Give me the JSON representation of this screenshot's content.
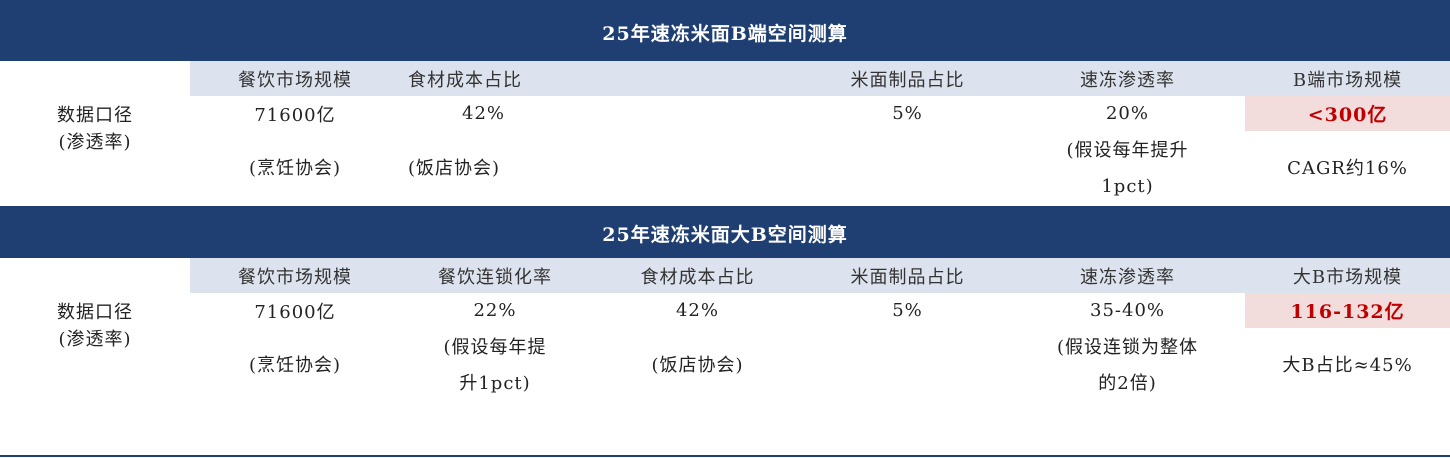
{
  "table1": {
    "title": "25年速冻米面B端空间测算",
    "headers": [
      "餐饮市场规模",
      "食材成本占比",
      "",
      "米面制品占比",
      "速冻渗透率",
      "B端市场规模"
    ],
    "row_label": "数据口径",
    "row_sublabel": "(渗透率)",
    "values": [
      "71600亿",
      "42%",
      "",
      "5%",
      "20%",
      "<300亿"
    ],
    "sources": [
      "(烹饪协会)",
      "(饭店协会)",
      "",
      "",
      "(假设每年提升1pct)",
      "CAGR约16%"
    ]
  },
  "table2": {
    "title": "25年速冻米面大B空间测算",
    "headers": [
      "餐饮市场规模",
      "餐饮连锁化率",
      "食材成本占比",
      "米面制品占比",
      "速冻渗透率",
      "大B市场规模"
    ],
    "row_label": "数据口径",
    "row_sublabel": "(渗透率)",
    "values": [
      "71600亿",
      "22%",
      "42%",
      "5%",
      "35-40%",
      "116-132亿"
    ],
    "sources": [
      "(烹饪协会)",
      "(假设每年提升1pct)",
      "(饭店协会)",
      "",
      "(假设连锁为整体的2倍)",
      "大B占比≈45%"
    ]
  },
  "colors": {
    "header_bg": "#1f3f73",
    "subheader_bg": "#dde3ee",
    "highlight_bg": "#f2dcdc",
    "highlight_text": "#c00000"
  }
}
